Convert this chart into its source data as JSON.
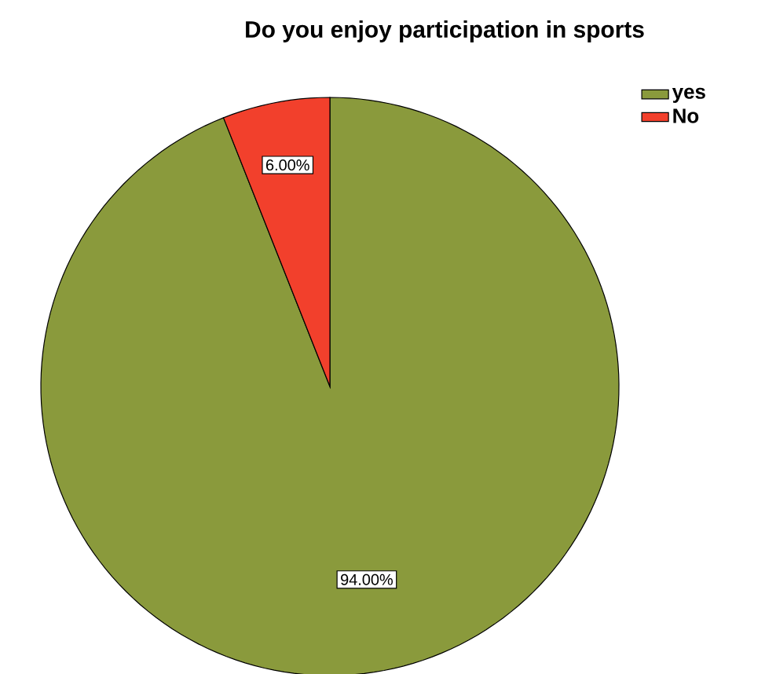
{
  "chart_data": {
    "type": "pie",
    "title": "Do you enjoy participation in sports",
    "categories": [
      "yes",
      "No"
    ],
    "values": [
      94,
      6
    ],
    "value_labels": [
      "94.00%",
      "6.00%"
    ],
    "colors": [
      "#8a9a3c",
      "#f2402c"
    ],
    "legend": "top right"
  }
}
